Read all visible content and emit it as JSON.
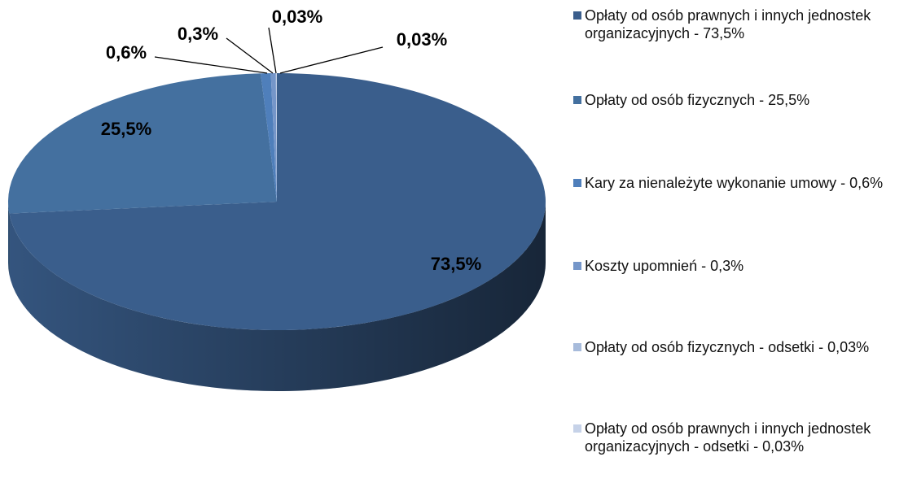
{
  "chart_data": {
    "type": "pie",
    "categories": [
      "Opłaty od osób prawnych i innych jednostek organizacyjnych - 73,5%",
      "Opłaty od osób fizycznych - 25,5%",
      "Kary za nienależyte wykonanie umowy - 0,6%",
      "Koszty upomnień - 0,3%",
      "Opłaty od osób fizycznych - odsetki - 0,03%",
      "Opłaty od osób prawnych i innych jednostek organizacyjnych - odsetki - 0,03%"
    ],
    "values": [
      73.5,
      25.5,
      0.6,
      0.3,
      0.03,
      0.03
    ],
    "value_labels": [
      "73,5%",
      "25,5%",
      "0,6%",
      "0,3%",
      "0,03%",
      "0,03%"
    ],
    "colors": [
      "#3a5e8c",
      "#44709f",
      "#4f7fbb",
      "#7596c9",
      "#a7bbdb",
      "#c6d2e8"
    ],
    "legend": "right"
  }
}
